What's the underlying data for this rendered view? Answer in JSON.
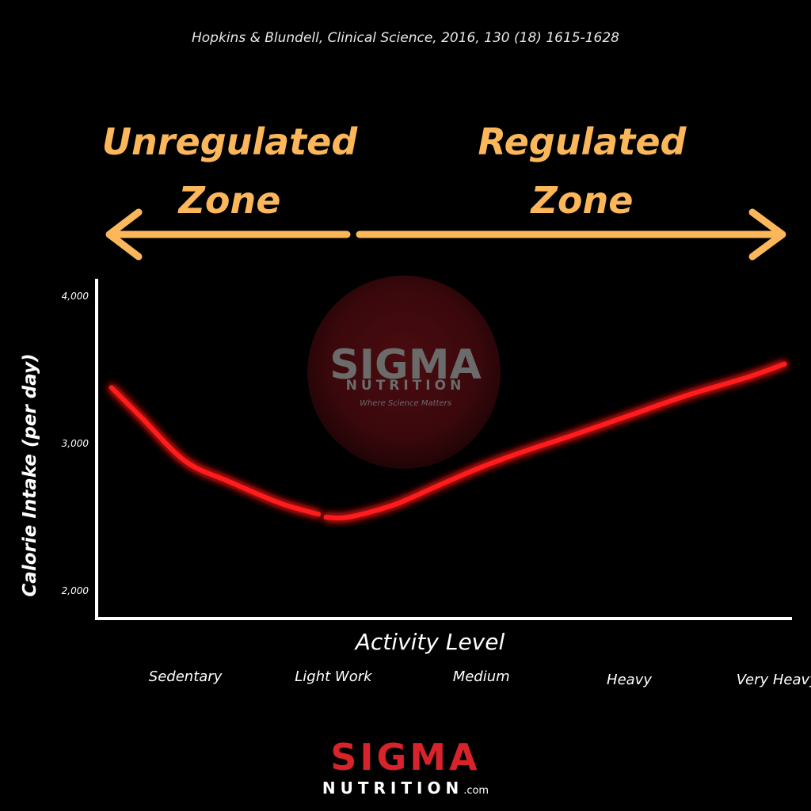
{
  "source": "Hopkins & Blundell, Clinical Science, 2016, 130 (18) 1615-1628",
  "zones": {
    "left": {
      "line1": "Unregulated",
      "line2": "Zone"
    },
    "right": {
      "line1": "Regulated",
      "line2": "Zone"
    }
  },
  "colors": {
    "accent": "#fbb75a",
    "curve": "#ff1a1a",
    "brand": "#d8232a",
    "axis": "#ffffff"
  },
  "watermark": {
    "title": "SIGMA",
    "subtitle": "NUTRITION",
    "tagline": "Where Science Matters"
  },
  "logo": {
    "title": "SIGMA",
    "subtitle": "NUTRITION",
    "suffix": ".com"
  },
  "chart_data": {
    "type": "line",
    "title": "",
    "xlabel": "Activity Level",
    "ylabel": "Calorie Intake (per day)",
    "ylim": [
      1800,
      4200
    ],
    "yticks": [
      2000,
      3000,
      4000
    ],
    "ytick_labels": [
      "2,000",
      "3,000",
      "4,000"
    ],
    "xlim": [
      -0.6,
      4.1
    ],
    "categories": [
      "Sedentary",
      "Light Work",
      "Medium",
      "Heavy",
      "Very Heavy"
    ],
    "category_x": [
      0,
      1,
      2,
      3,
      4
    ],
    "series": [
      {
        "segments": [
          {
            "x": [
              -0.5,
              -0.3,
              0,
              0.3,
              0.6,
              0.75,
              0.9
            ],
            "y": [
              3380,
              3180,
              2880,
              2740,
              2610,
              2560,
              2520
            ]
          },
          {
            "x": [
              0.95,
              1.1,
              1.4,
              1.7,
              2.0,
              2.3,
              2.6,
              3.0,
              3.4,
              3.8,
              4.05
            ],
            "y": [
              2500,
              2500,
              2580,
              2710,
              2840,
              2950,
              3050,
              3190,
              3330,
              3450,
              3540
            ]
          }
        ]
      }
    ],
    "grid": false,
    "legend": "none"
  }
}
